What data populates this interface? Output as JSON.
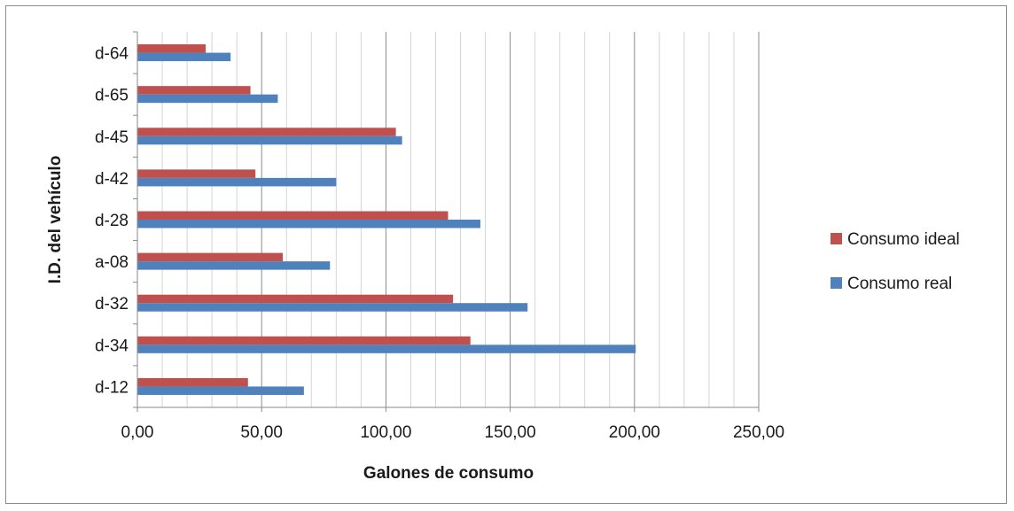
{
  "chart_data": {
    "type": "bar",
    "orientation": "horizontal",
    "categories": [
      "d-12",
      "d-34",
      "d-32",
      "a-08",
      "d-28",
      "d-42",
      "d-45",
      "d-65",
      "d-64"
    ],
    "series": [
      {
        "name": "Consumo ideal",
        "color": "#c0504d",
        "values": [
          44.5,
          134,
          127,
          58.5,
          125,
          47.5,
          104,
          45.5,
          27.5
        ]
      },
      {
        "name": "Consumo real",
        "color": "#4f81bd",
        "values": [
          67,
          200.5,
          157,
          77.5,
          138,
          80,
          106.5,
          56.5,
          37.5
        ]
      }
    ],
    "title": "",
    "xlabel": "Galones de consumo",
    "ylabel": "I.D. del vehículo",
    "xlim": [
      0,
      250
    ],
    "x_major_step": 50,
    "x_minor_step": 10,
    "x_tick_labels": [
      "0,00",
      "50,00",
      "100,00",
      "150,00",
      "200,00",
      "250,00"
    ],
    "grid": "vertical",
    "legend_position": "right"
  }
}
